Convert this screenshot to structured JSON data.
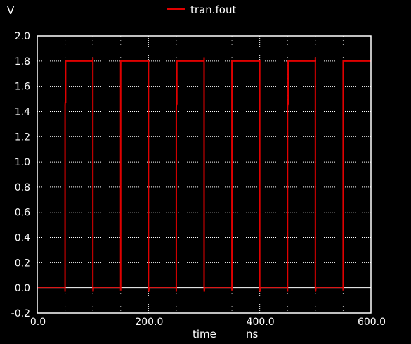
{
  "chart_data": {
    "type": "line",
    "ylabel": "V",
    "xlabel": "time",
    "xunit": "ns",
    "xlim": [
      0,
      600
    ],
    "ylim": [
      -0.2,
      2.0
    ],
    "xticks": [
      0,
      200,
      400,
      600
    ],
    "xtick_labels": [
      "0.0",
      "200.0",
      "400.0",
      "600.0"
    ],
    "xgrid": [
      0,
      50,
      100,
      150,
      200,
      250,
      300,
      350,
      400,
      450,
      500,
      550,
      600
    ],
    "yticks": [
      -0.2,
      0.0,
      0.2,
      0.4,
      0.6,
      0.8,
      1.0,
      1.2,
      1.4,
      1.6,
      1.8,
      2.0
    ],
    "ytick_labels": [
      "-0.2",
      "0.0",
      "0.2",
      "0.4",
      "0.6",
      "0.8",
      "1.0",
      "1.2",
      "1.4",
      "1.6",
      "1.8",
      "2.0"
    ],
    "grid": true,
    "legend_position": "top-center",
    "background": "#000000",
    "axis_color": "#ffffff",
    "series": [
      {
        "name": "tran.fout",
        "color": "#e00000",
        "x": [
          0,
          50,
          50,
          50,
          50.3,
          51,
          51,
          100,
          100,
          100,
          100.3,
          101,
          101,
          150,
          150,
          150,
          150.3,
          151,
          151,
          200,
          200,
          200,
          200.3,
          201,
          201,
          250,
          250,
          250,
          250.3,
          251,
          251,
          300,
          300,
          300,
          300.3,
          301,
          301,
          350,
          350,
          350,
          350.3,
          351,
          351,
          400,
          400,
          400,
          400.3,
          401,
          401,
          450,
          450,
          450,
          450.3,
          451,
          451,
          500,
          500,
          500,
          500.3,
          501,
          501,
          550,
          550,
          550,
          550.3,
          551,
          551,
          600
        ],
        "y": [
          0,
          0,
          -0.03,
          1.45,
          1.47,
          1.47,
          1.8,
          1.8,
          1.83,
          0,
          -0.03,
          0,
          0,
          0,
          -0.02,
          1.8,
          1.8,
          1.8,
          1.8,
          1.8,
          1.8,
          0,
          -0.03,
          0,
          0,
          0,
          -0.03,
          1.43,
          1.46,
          1.46,
          1.8,
          1.8,
          1.83,
          0,
          -0.03,
          0,
          0,
          0,
          -0.02,
          1.8,
          1.8,
          1.8,
          1.8,
          1.8,
          1.8,
          0,
          -0.03,
          0,
          0,
          0,
          -0.03,
          1.43,
          1.46,
          1.46,
          1.8,
          1.8,
          1.83,
          0,
          -0.03,
          0,
          0,
          0,
          -0.02,
          1.8,
          1.8,
          1.8,
          1.8,
          1.8
        ]
      }
    ]
  }
}
